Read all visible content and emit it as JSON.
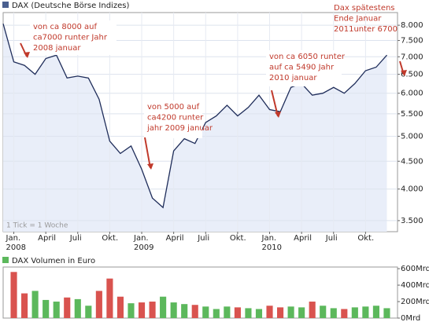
{
  "chart_data": [
    {
      "type": "line",
      "title": "DAX (Deutsche Börse Indizes)",
      "color": "#1f2d5a",
      "area_color": "#e9eef9",
      "log_scale": true,
      "grid": true,
      "x": [
        "2007-12",
        "2008-01",
        "2008-02",
        "2008-03",
        "2008-04",
        "2008-05",
        "2008-06",
        "2008-07",
        "2008-08",
        "2008-09",
        "2008-10",
        "2008-11",
        "2008-12",
        "2009-01",
        "2009-02",
        "2009-03",
        "2009-04",
        "2009-05",
        "2009-06",
        "2009-07",
        "2009-08",
        "2009-09",
        "2009-10",
        "2009-11",
        "2009-12",
        "2010-01",
        "2010-02",
        "2010-03",
        "2010-04",
        "2010-05",
        "2010-06",
        "2010-07",
        "2010-08",
        "2010-09",
        "2010-10",
        "2010-11",
        "2010-12"
      ],
      "values": [
        8050,
        6850,
        6750,
        6500,
        6950,
        7050,
        6400,
        6450,
        6400,
        5850,
        4900,
        4650,
        4800,
        4350,
        3850,
        3700,
        4700,
        4950,
        4850,
        5300,
        5450,
        5700,
        5450,
        5650,
        5950,
        5600,
        5550,
        6150,
        6250,
        5950,
        6000,
        6150,
        6000,
        6250,
        6600,
        6700,
        7050
      ],
      "xlim": [
        "2007-12",
        "2011-01"
      ],
      "xticks": [
        {
          "value": "2008-01",
          "label": "Jan."
        },
        {
          "value": "2008-04",
          "label": "April"
        },
        {
          "value": "2008-07",
          "label": "Juli"
        },
        {
          "value": "2008-10",
          "label": "Okt."
        },
        {
          "value": "2009-01",
          "label": "Jan."
        },
        {
          "value": "2009-04",
          "label": "April"
        },
        {
          "value": "2009-07",
          "label": "Juli"
        },
        {
          "value": "2009-10",
          "label": "Okt."
        },
        {
          "value": "2010-01",
          "label": "Jan."
        },
        {
          "value": "2010-04",
          "label": "April"
        },
        {
          "value": "2010-07",
          "label": "Juli"
        },
        {
          "value": "2010-10",
          "label": "Okt."
        }
      ],
      "year_labels": [
        {
          "value": "2008-01",
          "label": "2008"
        },
        {
          "value": "2009-01",
          "label": "2009"
        },
        {
          "value": "2010-01",
          "label": "2010"
        }
      ],
      "ylim": [
        3340,
        8440
      ],
      "yticks": [
        {
          "value": 3500,
          "label": "3.500"
        },
        {
          "value": 4000,
          "label": "4.000"
        },
        {
          "value": 4500,
          "label": "4.500"
        },
        {
          "value": 5000,
          "label": "5.000"
        },
        {
          "value": 5500,
          "label": "5.500"
        },
        {
          "value": 6000,
          "label": "6.000"
        },
        {
          "value": 6500,
          "label": "6.500"
        },
        {
          "value": 7000,
          "label": "7.000"
        },
        {
          "value": 7500,
          "label": "7.500"
        },
        {
          "value": 8000,
          "label": "8.000"
        }
      ],
      "note": "1 Tick = 1 Woche",
      "annotations": [
        [
          "von ca 8000 auf",
          "ca7000 runter Jahr",
          "2008 januar"
        ],
        [
          "von 5000 auf",
          "ca4200 runter",
          "jahr 2009 januar"
        ],
        [
          "von ca 6050 runter",
          "auf ca 5490 Jahr",
          "2010 januar"
        ],
        [
          "Dax spätestens",
          "Ende Januar",
          "2011unter 6700"
        ]
      ]
    },
    {
      "type": "bar",
      "title": "DAX Volumen in Euro",
      "x": [
        "2008-01",
        "2008-02",
        "2008-03",
        "2008-04",
        "2008-05",
        "2008-06",
        "2008-07",
        "2008-08",
        "2008-09",
        "2008-10",
        "2008-11",
        "2008-12",
        "2009-01",
        "2009-02",
        "2009-03",
        "2009-04",
        "2009-05",
        "2009-06",
        "2009-07",
        "2009-08",
        "2009-09",
        "2009-10",
        "2009-11",
        "2009-12",
        "2010-01",
        "2010-02",
        "2010-03",
        "2010-04",
        "2010-05",
        "2010-06",
        "2010-07",
        "2010-08",
        "2010-09",
        "2010-10",
        "2010-11",
        "2010-12"
      ],
      "values": [
        560,
        300,
        330,
        220,
        200,
        250,
        230,
        150,
        330,
        480,
        260,
        180,
        190,
        200,
        260,
        190,
        170,
        160,
        140,
        110,
        140,
        130,
        120,
        110,
        150,
        130,
        140,
        130,
        200,
        150,
        120,
        110,
        130,
        140,
        150,
        120
      ],
      "colors": [
        "#d9534f",
        "#d9534f",
        "#5cb85c",
        "#5cb85c",
        "#5cb85c",
        "#d9534f",
        "#5cb85c",
        "#5cb85c",
        "#d9534f",
        "#d9534f",
        "#d9534f",
        "#5cb85c",
        "#d9534f",
        "#d9534f",
        "#5cb85c",
        "#5cb85c",
        "#5cb85c",
        "#d9534f",
        "#5cb85c",
        "#5cb85c",
        "#5cb85c",
        "#d9534f",
        "#5cb85c",
        "#5cb85c",
        "#d9534f",
        "#d9534f",
        "#5cb85c",
        "#5cb85c",
        "#d9534f",
        "#5cb85c",
        "#5cb85c",
        "#d9534f",
        "#5cb85c",
        "#5cb85c",
        "#5cb85c",
        "#5cb85c"
      ],
      "xlim": [
        "2007-12",
        "2011-01"
      ],
      "ylim": [
        0,
        620
      ],
      "yticks": [
        {
          "value": 0,
          "label": "0Mrd"
        },
        {
          "value": 200,
          "label": "200Mrd"
        },
        {
          "value": 400,
          "label": "400Mrd"
        },
        {
          "value": 600,
          "label": "600Mrd"
        }
      ]
    }
  ]
}
